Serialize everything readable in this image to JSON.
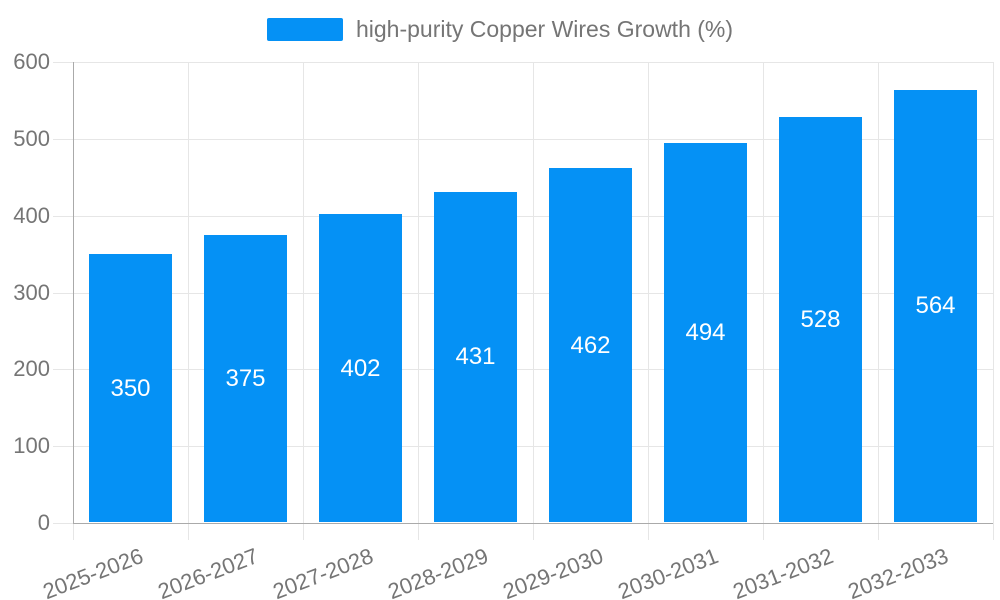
{
  "chart_data": {
    "type": "bar",
    "title": "",
    "legend": {
      "position": "top-center",
      "label": "high-purity Copper Wires Growth (%)"
    },
    "categories": [
      "2025-2026",
      "2026-2027",
      "2027-2028",
      "2028-2029",
      "2029-2030",
      "2030-2031",
      "2031-2032",
      "2032-2033"
    ],
    "series": [
      {
        "name": "high-purity Copper Wires Growth (%)",
        "values": [
          350,
          375,
          402,
          431,
          462,
          494,
          528,
          564
        ]
      }
    ],
    "y_ticks": [
      0,
      100,
      200,
      300,
      400,
      500,
      600
    ],
    "ylim": [
      0,
      600
    ],
    "xlabel": "",
    "ylabel": "",
    "grid": "horizontal and vertical light gridlines",
    "colors": {
      "bar": "#0591F5",
      "value_label_text": "#ffffff",
      "axis_label_text": "#757575",
      "legend_text": "#757575",
      "grid_line": "#e6e6e6",
      "axis_line": "#aaaaaa",
      "background": "#ffffff"
    }
  }
}
